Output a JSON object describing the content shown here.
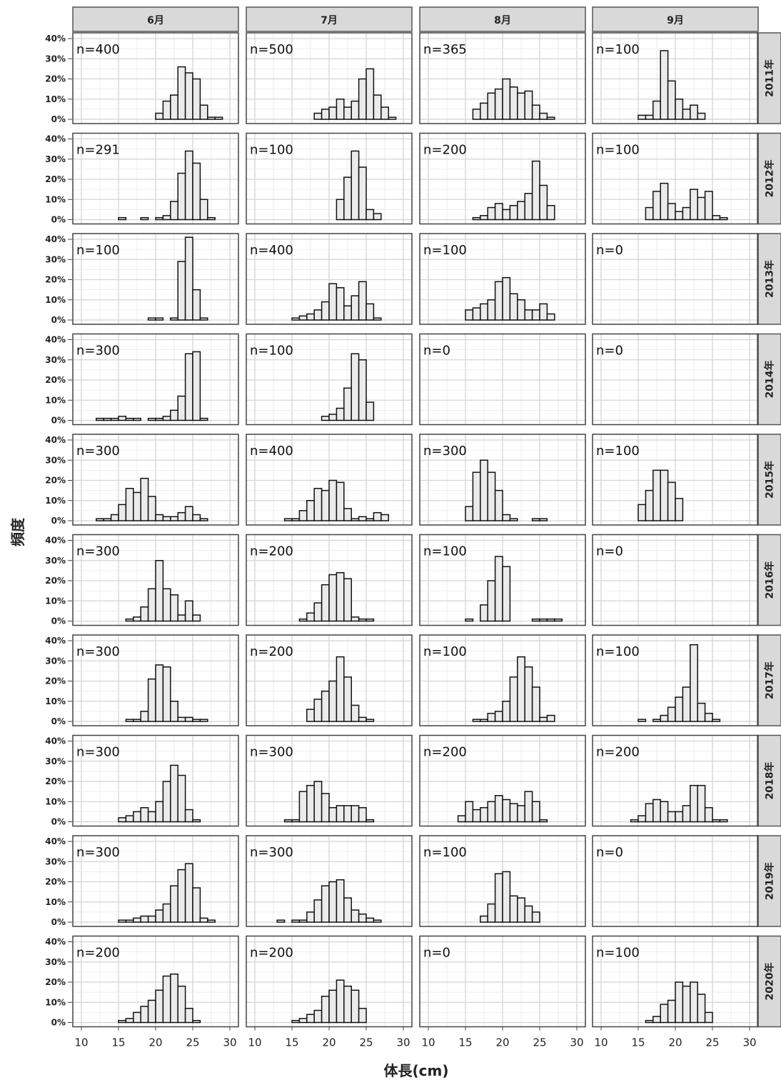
{
  "chart_data": {
    "type": "bar",
    "xlabel": "体長(cm)",
    "ylabel": "頻度",
    "xlim": [
      10,
      30
    ],
    "xticks": [
      10,
      15,
      20,
      25,
      30
    ],
    "ylim": [
      0,
      40
    ],
    "yticks": [
      "0%",
      "10%",
      "20%",
      "30%",
      "40%"
    ],
    "bin_width": 1,
    "bin_start": 10,
    "months": [
      "6月",
      "7月",
      "8月",
      "9月"
    ],
    "years": [
      "2011年",
      "2012年",
      "2013年",
      "2014年",
      "2015年",
      "2016年",
      "2017年",
      "2018年",
      "2019年",
      "2020年"
    ],
    "panels": [
      [
        {
          "n": "n=400",
          "values": [
            0,
            0,
            0,
            0,
            0,
            0,
            0,
            0,
            0,
            0,
            3,
            9,
            12,
            26,
            23,
            20,
            7,
            1,
            1,
            0
          ]
        },
        {
          "n": "n=500",
          "values": [
            0,
            0,
            0,
            0,
            0,
            0,
            0,
            0,
            3,
            5,
            6,
            10,
            6,
            9,
            20,
            25,
            12,
            6,
            1,
            0
          ]
        },
        {
          "n": "n=365",
          "values": [
            0,
            0,
            0,
            0,
            0,
            0,
            5,
            8,
            13,
            15,
            20,
            16,
            13,
            14,
            7,
            3,
            1,
            0,
            0,
            0
          ]
        },
        {
          "n": "n=100",
          "values": [
            0,
            0,
            0,
            0,
            0,
            2,
            2,
            9,
            34,
            19,
            10,
            5,
            7,
            3,
            0,
            0,
            0,
            0,
            0,
            0
          ]
        }
      ],
      [
        {
          "n": "n=291",
          "values": [
            0,
            0,
            0,
            0,
            0,
            1,
            0,
            0,
            1,
            0,
            1,
            2,
            9,
            23,
            34,
            28,
            10,
            1,
            0,
            0
          ]
        },
        {
          "n": "n=100",
          "values": [
            0,
            0,
            0,
            0,
            0,
            0,
            0,
            0,
            0,
            0,
            0,
            10,
            21,
            34,
            26,
            5,
            3,
            0,
            0,
            0
          ]
        },
        {
          "n": "n=200",
          "values": [
            0,
            0,
            0,
            0,
            0,
            0,
            1,
            2,
            6,
            8,
            5,
            7,
            9,
            13,
            29,
            17,
            7,
            0,
            0,
            0
          ]
        },
        {
          "n": "n=100",
          "values": [
            0,
            0,
            0,
            0,
            0,
            0,
            6,
            14,
            18,
            8,
            4,
            6,
            15,
            11,
            14,
            2,
            1,
            0,
            0,
            0
          ]
        }
      ],
      [
        {
          "n": "n=100",
          "values": [
            0,
            0,
            0,
            0,
            0,
            0,
            0,
            0,
            0,
            1,
            1,
            0,
            1,
            29,
            41,
            15,
            1,
            0,
            0,
            0
          ]
        },
        {
          "n": "n=400",
          "values": [
            0,
            0,
            0,
            0,
            0,
            1,
            2,
            3,
            5,
            9,
            18,
            16,
            7,
            12,
            19,
            8,
            1,
            0,
            0,
            0
          ]
        },
        {
          "n": "n=100",
          "values": [
            0,
            0,
            0,
            0,
            0,
            5,
            6,
            8,
            10,
            19,
            21,
            13,
            10,
            5,
            5,
            8,
            3,
            0,
            0,
            0
          ]
        },
        {
          "n": "n=0",
          "values": [
            0,
            0,
            0,
            0,
            0,
            0,
            0,
            0,
            0,
            0,
            0,
            0,
            0,
            0,
            0,
            0,
            0,
            0,
            0,
            0
          ]
        }
      ],
      [
        {
          "n": "n=300",
          "values": [
            0,
            0,
            1,
            1,
            1,
            2,
            1,
            1,
            0,
            1,
            1,
            2,
            5,
            12,
            33,
            34,
            1,
            0,
            0,
            0
          ]
        },
        {
          "n": "n=100",
          "values": [
            0,
            0,
            0,
            0,
            0,
            0,
            0,
            0,
            0,
            2,
            3,
            6,
            16,
            33,
            30,
            9,
            0,
            0,
            0,
            0
          ]
        },
        {
          "n": "n=0",
          "values": [
            0,
            0,
            0,
            0,
            0,
            0,
            0,
            0,
            0,
            0,
            0,
            0,
            0,
            0,
            0,
            0,
            0,
            0,
            0,
            0
          ]
        },
        {
          "n": "n=0",
          "values": [
            0,
            0,
            0,
            0,
            0,
            0,
            0,
            0,
            0,
            0,
            0,
            0,
            0,
            0,
            0,
            0,
            0,
            0,
            0,
            0
          ]
        }
      ],
      [
        {
          "n": "n=300",
          "values": [
            0,
            0,
            1,
            1,
            3,
            8,
            16,
            14,
            21,
            12,
            3,
            2,
            2,
            4,
            7,
            3,
            1,
            0,
            0,
            0
          ]
        },
        {
          "n": "n=400",
          "values": [
            0,
            0,
            0,
            0,
            1,
            1,
            5,
            10,
            16,
            15,
            20,
            19,
            6,
            1,
            2,
            1,
            4,
            3,
            0,
            0
          ]
        },
        {
          "n": "n=300",
          "values": [
            0,
            0,
            0,
            0,
            0,
            7,
            24,
            30,
            24,
            15,
            3,
            1,
            0,
            0,
            1,
            1,
            0,
            0,
            0,
            0
          ]
        },
        {
          "n": "n=100",
          "values": [
            0,
            0,
            0,
            0,
            0,
            8,
            15,
            25,
            25,
            19,
            11,
            0,
            0,
            0,
            0,
            0,
            0,
            0,
            0,
            0
          ]
        }
      ],
      [
        {
          "n": "n=300",
          "values": [
            0,
            0,
            0,
            0,
            0,
            0,
            1,
            2,
            7,
            16,
            30,
            16,
            13,
            3,
            10,
            3,
            0,
            0,
            0,
            0
          ]
        },
        {
          "n": "n=200",
          "values": [
            0,
            0,
            0,
            0,
            0,
            0,
            1,
            4,
            9,
            18,
            23,
            24,
            21,
            2,
            1,
            1,
            0,
            0,
            0,
            0
          ]
        },
        {
          "n": "n=100",
          "values": [
            0,
            0,
            0,
            0,
            0,
            1,
            0,
            8,
            20,
            32,
            27,
            0,
            0,
            0,
            1,
            1,
            1,
            1,
            0,
            0
          ]
        },
        {
          "n": "n=0",
          "values": [
            0,
            0,
            0,
            0,
            0,
            0,
            0,
            0,
            0,
            0,
            0,
            0,
            0,
            0,
            0,
            0,
            0,
            0,
            0,
            0
          ]
        }
      ],
      [
        {
          "n": "n=300",
          "values": [
            0,
            0,
            0,
            0,
            0,
            0,
            1,
            1,
            5,
            21,
            28,
            27,
            10,
            2,
            2,
            1,
            1,
            0,
            0,
            0
          ]
        },
        {
          "n": "n=200",
          "values": [
            0,
            0,
            0,
            0,
            0,
            0,
            0,
            6,
            11,
            15,
            20,
            32,
            22,
            8,
            2,
            1,
            0,
            0,
            0,
            0
          ]
        },
        {
          "n": "n=100",
          "values": [
            0,
            0,
            0,
            0,
            0,
            0,
            1,
            1,
            4,
            5,
            10,
            22,
            32,
            27,
            17,
            2,
            3,
            0,
            0,
            0
          ]
        },
        {
          "n": "n=100",
          "values": [
            0,
            0,
            0,
            0,
            0,
            1,
            0,
            1,
            3,
            7,
            12,
            17,
            38,
            9,
            4,
            1,
            0,
            0,
            0,
            0
          ]
        }
      ],
      [
        {
          "n": "n=300",
          "values": [
            0,
            0,
            0,
            0,
            0,
            2,
            3,
            5,
            7,
            5,
            10,
            20,
            28,
            23,
            6,
            1,
            0,
            0,
            0,
            0
          ]
        },
        {
          "n": "n=300",
          "values": [
            0,
            0,
            0,
            0,
            1,
            1,
            15,
            18,
            20,
            14,
            7,
            8,
            8,
            8,
            7,
            1,
            0,
            0,
            0,
            0
          ]
        },
        {
          "n": "n=200",
          "values": [
            0,
            0,
            0,
            0,
            3,
            10,
            6,
            7,
            10,
            13,
            11,
            9,
            8,
            15,
            10,
            1,
            0,
            0,
            0,
            0
          ]
        },
        {
          "n": "n=200",
          "values": [
            0,
            0,
            0,
            0,
            1,
            3,
            9,
            11,
            10,
            5,
            5,
            8,
            18,
            18,
            7,
            1,
            1,
            0,
            0,
            0
          ]
        }
      ],
      [
        {
          "n": "n=300",
          "values": [
            0,
            0,
            0,
            0,
            0,
            1,
            1,
            2,
            3,
            3,
            6,
            9,
            18,
            26,
            29,
            17,
            2,
            1,
            0,
            0
          ]
        },
        {
          "n": "n=300",
          "values": [
            0,
            0,
            0,
            1,
            0,
            1,
            1,
            5,
            11,
            18,
            20,
            21,
            12,
            6,
            4,
            2,
            1,
            0,
            0,
            0
          ]
        },
        {
          "n": "n=100",
          "values": [
            0,
            0,
            0,
            0,
            0,
            0,
            0,
            3,
            9,
            24,
            25,
            13,
            12,
            8,
            5,
            0,
            0,
            0,
            0,
            0
          ]
        },
        {
          "n": "n=0",
          "values": [
            0,
            0,
            0,
            0,
            0,
            0,
            0,
            0,
            0,
            0,
            0,
            0,
            0,
            0,
            0,
            0,
            0,
            0,
            0,
            0
          ]
        }
      ],
      [
        {
          "n": "n=200",
          "values": [
            0,
            0,
            0,
            0,
            0,
            1,
            2,
            5,
            8,
            11,
            16,
            23,
            24,
            18,
            7,
            1,
            0,
            0,
            0,
            0
          ]
        },
        {
          "n": "n=200",
          "values": [
            0,
            0,
            0,
            0,
            0,
            1,
            2,
            4,
            6,
            13,
            16,
            21,
            18,
            16,
            7,
            0,
            0,
            0,
            0,
            0
          ]
        },
        {
          "n": "n=0",
          "values": [
            0,
            0,
            0,
            0,
            0,
            0,
            0,
            0,
            0,
            0,
            0,
            0,
            0,
            0,
            0,
            0,
            0,
            0,
            0,
            0
          ]
        },
        {
          "n": "n=100",
          "values": [
            0,
            0,
            0,
            0,
            0,
            0,
            1,
            3,
            9,
            11,
            20,
            18,
            20,
            14,
            5,
            0,
            0,
            0,
            0,
            0
          ]
        }
      ]
    ]
  }
}
